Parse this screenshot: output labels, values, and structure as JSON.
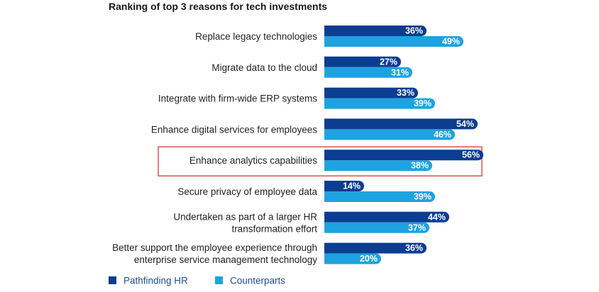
{
  "chart_data": {
    "type": "bar",
    "orientation": "horizontal",
    "title": "Ranking of top 3 reasons for tech investments",
    "categories": [
      [
        "Replace legacy technologies"
      ],
      [
        "Migrate data to the cloud"
      ],
      [
        "Integrate with firm-wide ERP systems"
      ],
      [
        "Enhance digital services for employees"
      ],
      [
        "Enhance analytics capabilities"
      ],
      [
        "Secure privacy of employee data"
      ],
      [
        "Undertaken as part of a larger HR",
        "transformation effort"
      ],
      [
        "Better support the employee experience through",
        "enterprise service management technology"
      ]
    ],
    "series": [
      {
        "name": "Pathfinding HR",
        "color": "#0b3d91",
        "values": [
          36,
          27,
          33,
          54,
          56,
          14,
          44,
          36
        ]
      },
      {
        "name": "Counterparts",
        "color": "#1ea3e0",
        "values": [
          49,
          31,
          39,
          46,
          38,
          39,
          37,
          20
        ]
      }
    ],
    "value_suffix": "%",
    "xlim": [
      0,
      60
    ],
    "highlight_category_index": 4,
    "highlight_color": "#e05050",
    "legend_position": "bottom-left",
    "grid": false
  }
}
